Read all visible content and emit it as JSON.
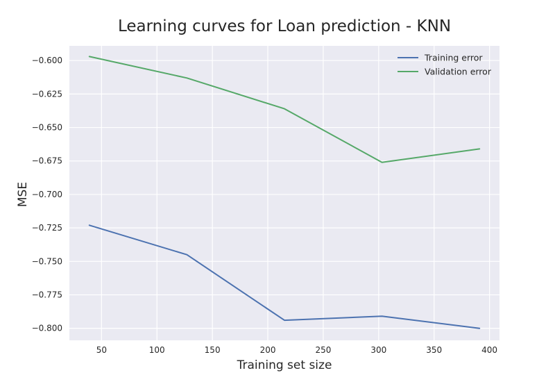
{
  "chart_data": {
    "type": "line",
    "title": "Learning curves for Loan prediction - KNN",
    "xlabel": "Training set size",
    "ylabel": "MSE",
    "xlim": [
      21,
      409
    ],
    "ylim": [
      -0.809,
      -0.589
    ],
    "xticks": [
      50,
      100,
      150,
      200,
      250,
      300,
      350,
      400
    ],
    "xtick_labels": [
      "50",
      "100",
      "150",
      "200",
      "250",
      "300",
      "350",
      "400"
    ],
    "yticks": [
      -0.6,
      -0.625,
      -0.65,
      -0.675,
      -0.7,
      -0.725,
      -0.75,
      -0.775,
      -0.8
    ],
    "ytick_labels": [
      "−0.600",
      "−0.625",
      "−0.650",
      "−0.675",
      "−0.700",
      "−0.725",
      "−0.750",
      "−0.775",
      "−0.800"
    ],
    "grid": true,
    "legend_position": "top-right",
    "x": [
      39,
      127,
      215,
      303,
      391
    ],
    "series": [
      {
        "name": "Training error",
        "color": "#4c72b0",
        "values": [
          -0.723,
          -0.745,
          -0.794,
          -0.791,
          -0.8
        ]
      },
      {
        "name": "Validation error",
        "color": "#55a868",
        "values": [
          -0.597,
          -0.613,
          -0.636,
          -0.676,
          -0.666
        ]
      }
    ]
  },
  "style": {
    "plot_background": "#eaeaf2",
    "page_background": "#ffffff"
  }
}
